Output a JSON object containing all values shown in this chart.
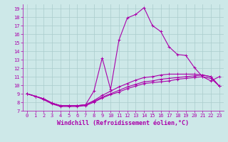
{
  "xlabel": "Windchill (Refroidissement éolien,°C)",
  "background_color": "#cde8e8",
  "grid_color": "#aacccc",
  "line_color": "#aa00aa",
  "xlim": [
    -0.5,
    23.5
  ],
  "ylim": [
    7,
    19.5
  ],
  "xticks": [
    0,
    1,
    2,
    3,
    4,
    5,
    6,
    7,
    8,
    9,
    10,
    11,
    12,
    13,
    14,
    15,
    16,
    17,
    18,
    19,
    20,
    21,
    22,
    23
  ],
  "yticks": [
    7,
    8,
    9,
    10,
    11,
    12,
    13,
    14,
    15,
    16,
    17,
    18,
    19
  ],
  "lines": [
    {
      "x": [
        0,
        1,
        2,
        3,
        4,
        5,
        6,
        7,
        8,
        9,
        10,
        11,
        12,
        13,
        14,
        15,
        16,
        17,
        18,
        19,
        20,
        21,
        22,
        23
      ],
      "y": [
        9.0,
        8.7,
        8.4,
        7.9,
        7.6,
        7.6,
        7.6,
        7.7,
        9.3,
        13.2,
        9.5,
        15.3,
        17.9,
        18.3,
        19.1,
        17.0,
        16.3,
        14.5,
        13.6,
        13.5,
        12.1,
        11.0,
        10.5,
        11.0
      ]
    },
    {
      "x": [
        0,
        1,
        2,
        3,
        4,
        5,
        6,
        7,
        8,
        9,
        10,
        11,
        12,
        13,
        14,
        15,
        16,
        17,
        18,
        19,
        20,
        21,
        22,
        23
      ],
      "y": [
        9.0,
        8.7,
        8.3,
        7.8,
        7.5,
        7.5,
        7.5,
        7.6,
        8.0,
        8.5,
        8.9,
        9.2,
        9.6,
        9.9,
        10.2,
        10.3,
        10.4,
        10.5,
        10.7,
        10.8,
        10.9,
        11.0,
        10.8,
        9.9
      ]
    },
    {
      "x": [
        0,
        1,
        2,
        3,
        4,
        5,
        6,
        7,
        8,
        9,
        10,
        11,
        12,
        13,
        14,
        15,
        16,
        17,
        18,
        19,
        20,
        21,
        22,
        23
      ],
      "y": [
        9.0,
        8.7,
        8.4,
        7.9,
        7.6,
        7.6,
        7.6,
        7.7,
        8.1,
        8.6,
        9.0,
        9.4,
        9.8,
        10.1,
        10.4,
        10.5,
        10.7,
        10.8,
        10.9,
        11.0,
        11.1,
        11.2,
        11.0,
        9.9
      ]
    },
    {
      "x": [
        0,
        1,
        2,
        3,
        4,
        5,
        6,
        7,
        8,
        9,
        10,
        11,
        12,
        13,
        14,
        15,
        16,
        17,
        18,
        19,
        20,
        21,
        22,
        23
      ],
      "y": [
        9.0,
        8.7,
        8.4,
        7.9,
        7.6,
        7.6,
        7.6,
        7.7,
        8.2,
        8.8,
        9.3,
        9.8,
        10.2,
        10.6,
        10.9,
        11.0,
        11.2,
        11.3,
        11.3,
        11.3,
        11.3,
        11.2,
        11.0,
        9.9
      ]
    }
  ],
  "marker": "+",
  "markersize": 3,
  "linewidth": 0.8,
  "tick_fontsize": 5,
  "label_fontsize": 6
}
